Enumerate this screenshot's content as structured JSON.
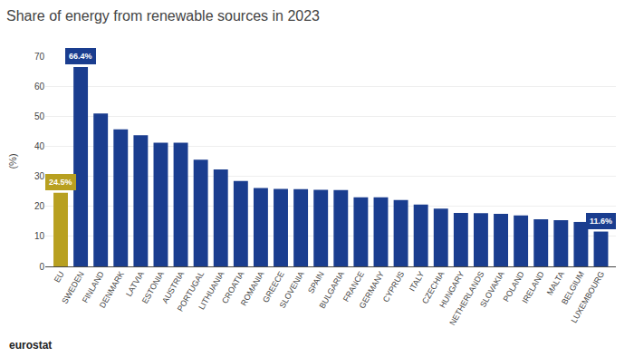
{
  "chart_data": {
    "type": "bar",
    "title": "Share of energy from renewable sources in 2023",
    "ylabel": "(%)",
    "categories": [
      "EU",
      "SWEDEN",
      "FINLAND",
      "DENMARK",
      "LATVIA",
      "ESTONIA",
      "AUSTRIA",
      "PORTUGAL",
      "LITHUANIA",
      "CROATIA",
      "ROMANIA",
      "GREECE",
      "SLOVENIA",
      "SPAIN",
      "BULGARIA",
      "FRANCE",
      "GERMANY",
      "CYPRUS",
      "ITALY",
      "CZECHIA",
      "HUNGARY",
      "NETHERLANDS",
      "SLOVAKIA",
      "POLAND",
      "IRELAND",
      "MALTA",
      "BELGIUM",
      "LUXEMBOURG"
    ],
    "values": [
      24.5,
      66.4,
      50.9,
      45.6,
      43.7,
      41.2,
      41.2,
      35.5,
      32.3,
      28.4,
      26.1,
      25.8,
      25.7,
      25.5,
      25.4,
      23.0,
      23.0,
      22.1,
      20.6,
      19.2,
      17.8,
      17.7,
      17.5,
      17.0,
      15.7,
      15.4,
      14.8,
      11.6
    ],
    "colors": [
      "#B8A020",
      "#1A3D8F",
      "#1A3D8F",
      "#1A3D8F",
      "#1A3D8F",
      "#1A3D8F",
      "#1A3D8F",
      "#1A3D8F",
      "#1A3D8F",
      "#1A3D8F",
      "#1A3D8F",
      "#1A3D8F",
      "#1A3D8F",
      "#1A3D8F",
      "#1A3D8F",
      "#1A3D8F",
      "#1A3D8F",
      "#1A3D8F",
      "#1A3D8F",
      "#1A3D8F",
      "#1A3D8F",
      "#1A3D8F",
      "#1A3D8F",
      "#1A3D8F",
      "#1A3D8F",
      "#1A3D8F",
      "#1A3D8F",
      "#1A3D8F"
    ],
    "annotations": [
      {
        "category": "EU",
        "value": 24.5,
        "text": "24.5%",
        "color": "#B8A020"
      },
      {
        "category": "SWEDEN",
        "value": 66.4,
        "text": "66.4%",
        "color": "#1A3D8F"
      },
      {
        "category": "LUXEMBOURG",
        "value": 11.6,
        "text": "11.6%",
        "color": "#1A3D8F"
      },
      {
        "text": "eurostat"
      }
    ],
    "ylim": [
      0,
      70
    ],
    "yticks": [
      0,
      10,
      20,
      30,
      40,
      50,
      60,
      70
    ],
    "grid": true
  }
}
